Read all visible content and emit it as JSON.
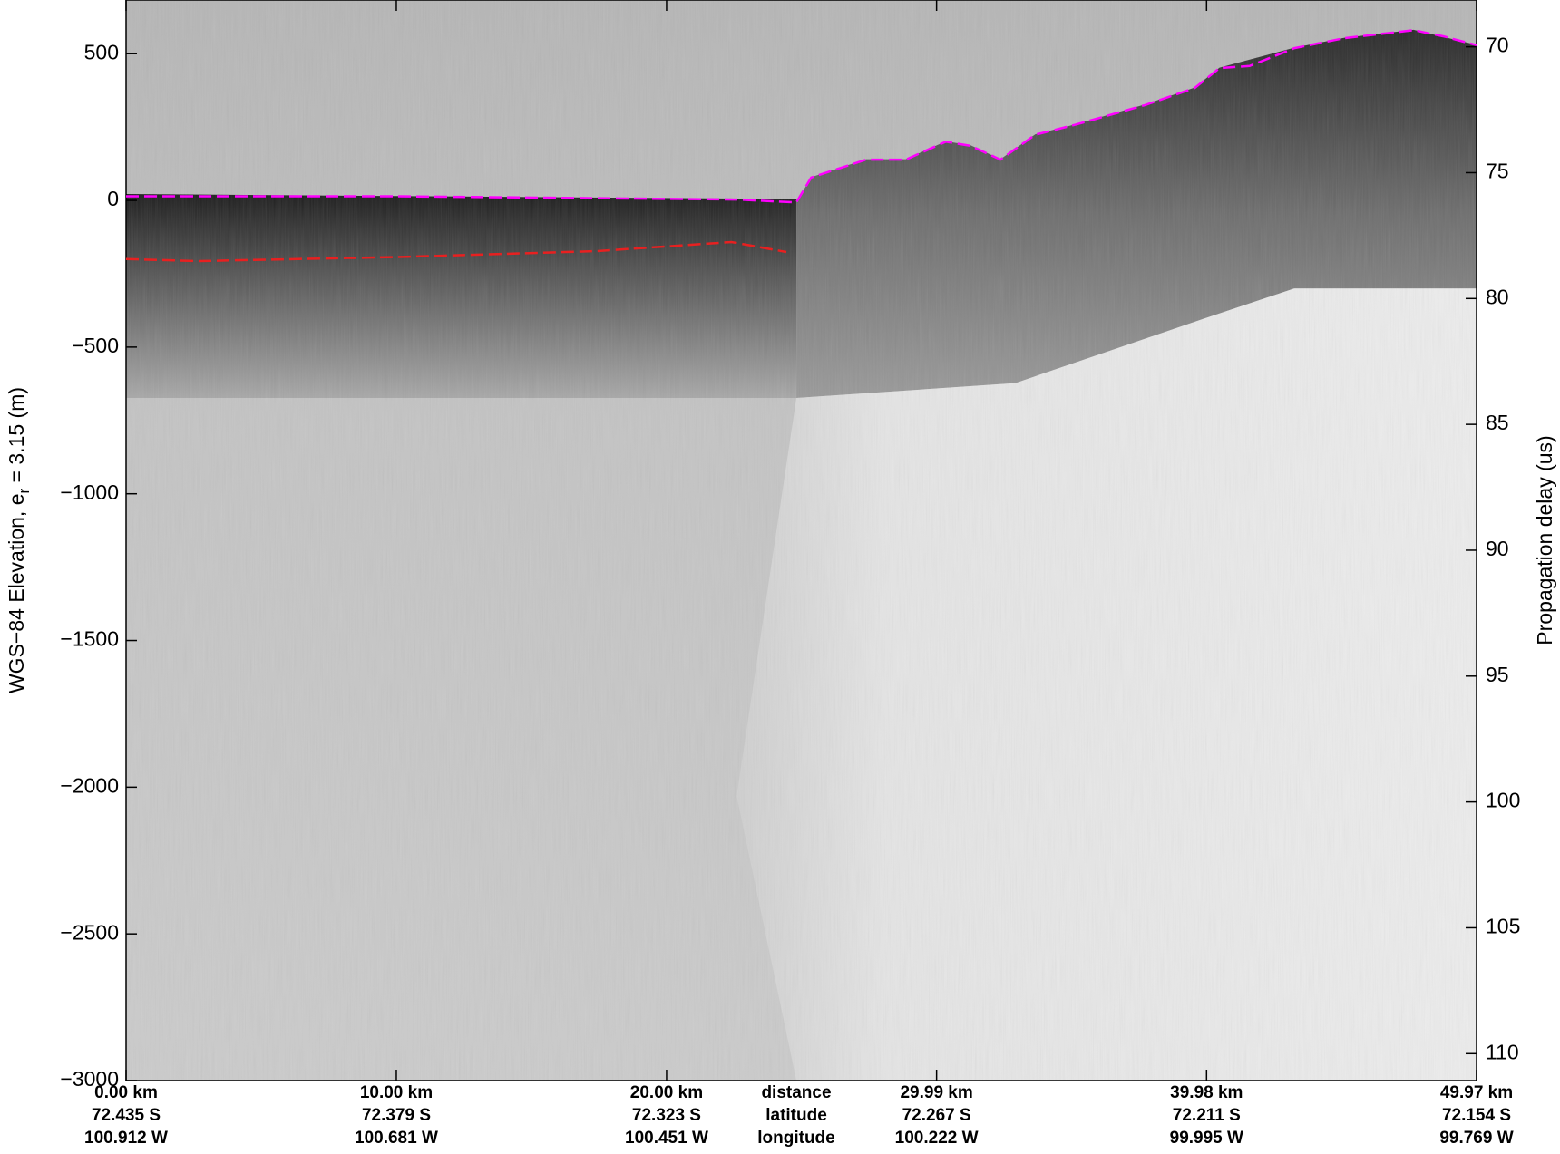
{
  "chart_data": {
    "type": "line",
    "y_label": "WGS−84 Elevation, e",
    "y_label_subscript": "r",
    "y_label_suffix": " = 3.15 (m)",
    "y2_label": "Propagation delay (us)",
    "xlim": [
      0,
      49.97
    ],
    "xticks": [
      {
        "value": 0,
        "label": "0.00 km"
      },
      {
        "value": 10.0,
        "label": "10.00 km"
      },
      {
        "value": 20.0,
        "label": "20.00 km"
      },
      {
        "value": 29.99,
        "label": "29.99 km"
      },
      {
        "value": 39.98,
        "label": "39.98 km"
      },
      {
        "value": 49.97,
        "label": "49.97 km"
      }
    ],
    "xtick_latitudes": [
      "72.435 S",
      "72.379 S",
      "72.323 S",
      "72.267 S",
      "72.211 S",
      "72.154 S"
    ],
    "xtick_longitudes": [
      "100.912 W",
      "100.681 W",
      "100.451 W",
      "100.222 W",
      "99.995 W",
      "99.769 W"
    ],
    "xtick_row_labels": [
      "distance",
      "latitude",
      "longitude"
    ],
    "ylim": [
      -3000,
      683
    ],
    "yticks": [
      {
        "value": -3000,
        "label": "−3000"
      },
      {
        "value": -2500,
        "label": "−2500"
      },
      {
        "value": -2000,
        "label": "−2000"
      },
      {
        "value": -1500,
        "label": "−1500"
      },
      {
        "value": -1000,
        "label": "−1000"
      },
      {
        "value": -500,
        "label": "−500"
      },
      0,
      500
    ],
    "y2lim": [
      111.07,
      68.14
    ],
    "y2ticks": [
      70,
      75,
      80,
      85,
      90,
      95,
      100,
      105,
      110
    ],
    "series": [
      {
        "color": "#ff00ff",
        "dash": true,
        "x": [
          0,
          10.06,
          22.59,
          24.8,
          25.35,
          27.38,
          28.85,
          30.33,
          31.25,
          32.35,
          33.64,
          35.12,
          37.7,
          39.54,
          40.46,
          41.57,
          43.23,
          45.07,
          47.65,
          48.75,
          49.97
        ],
        "values": [
          14,
          14,
          3,
          -7,
          78,
          139,
          139,
          200,
          186,
          139,
          224,
          258,
          325,
          383,
          451,
          458,
          519,
          553,
          580,
          559,
          529
        ]
      },
      {
        "color": "#e82020",
        "dash": true,
        "x": [
          0,
          2.69,
          10.06,
          17.43,
          22.4,
          24.43
        ],
        "values": [
          -200,
          -207,
          -193,
          -173,
          -142,
          -176
        ]
      }
    ]
  }
}
